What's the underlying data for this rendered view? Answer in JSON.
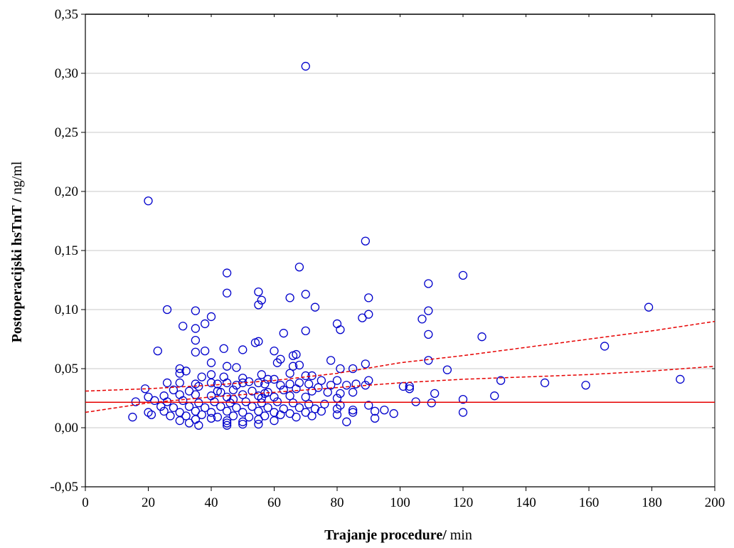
{
  "chart_data": {
    "type": "scatter",
    "xlabel": {
      "bold": "Trajanje procedure/",
      "unit": " min"
    },
    "ylabel": {
      "bold": "Postoperacijski hsTnT /",
      "unit": " ng/ml"
    },
    "xlim": [
      0,
      200
    ],
    "ylim": [
      -0.05,
      0.35
    ],
    "x_ticks": [
      "0",
      "20",
      "40",
      "60",
      "80",
      "100",
      "120",
      "140",
      "160",
      "180",
      "200"
    ],
    "y_ticks": [
      "-0,05",
      "0,00",
      "0,05",
      "0,10",
      "0,15",
      "0,20",
      "0,25",
      "0,30",
      "0,35"
    ],
    "grid": "horizontal",
    "colors": {
      "points": "#0000cc",
      "fit": "#e60000",
      "grid": "#c8c8c8"
    },
    "fit_line": {
      "intercept": 0.0215,
      "slope": 0.0
    },
    "ci_upper": [
      [
        0,
        0.031
      ],
      [
        20,
        0.033
      ],
      [
        40,
        0.036
      ],
      [
        60,
        0.04
      ],
      [
        80,
        0.046
      ],
      [
        100,
        0.055
      ],
      [
        120,
        0.061
      ],
      [
        140,
        0.068
      ],
      [
        160,
        0.075
      ],
      [
        180,
        0.082
      ],
      [
        200,
        0.09
      ]
    ],
    "ci_lower": [
      [
        0,
        0.013
      ],
      [
        20,
        0.021
      ],
      [
        40,
        0.026
      ],
      [
        60,
        0.03
      ],
      [
        80,
        0.034
      ],
      [
        100,
        0.038
      ],
      [
        120,
        0.041
      ],
      [
        140,
        0.043
      ],
      [
        160,
        0.045
      ],
      [
        180,
        0.048
      ],
      [
        200,
        0.052
      ]
    ],
    "points": [
      [
        70,
        0.306
      ],
      [
        20,
        0.192
      ],
      [
        89,
        0.158
      ],
      [
        68,
        0.136
      ],
      [
        45,
        0.131
      ],
      [
        120,
        0.129
      ],
      [
        109,
        0.122
      ],
      [
        45,
        0.114
      ],
      [
        55,
        0.115
      ],
      [
        70,
        0.113
      ],
      [
        65,
        0.11
      ],
      [
        90,
        0.11
      ],
      [
        56,
        0.108
      ],
      [
        55,
        0.104
      ],
      [
        73,
        0.102
      ],
      [
        179,
        0.102
      ],
      [
        26,
        0.1
      ],
      [
        35,
        0.099
      ],
      [
        109,
        0.099
      ],
      [
        40,
        0.094
      ],
      [
        90,
        0.096
      ],
      [
        88,
        0.093
      ],
      [
        107,
        0.092
      ],
      [
        80,
        0.088
      ],
      [
        38,
        0.088
      ],
      [
        31,
        0.086
      ],
      [
        35,
        0.084
      ],
      [
        81,
        0.083
      ],
      [
        70,
        0.082
      ],
      [
        63,
        0.08
      ],
      [
        109,
        0.079
      ],
      [
        126,
        0.077
      ],
      [
        35,
        0.074
      ],
      [
        54,
        0.072
      ],
      [
        55,
        0.073
      ],
      [
        165,
        0.069
      ],
      [
        44,
        0.067
      ],
      [
        23,
        0.065
      ],
      [
        35,
        0.064
      ],
      [
        38,
        0.065
      ],
      [
        50,
        0.066
      ],
      [
        60,
        0.065
      ],
      [
        66,
        0.061
      ],
      [
        67,
        0.062
      ],
      [
        62,
        0.058
      ],
      [
        61,
        0.055
      ],
      [
        78,
        0.057
      ],
      [
        109,
        0.057
      ],
      [
        40,
        0.055
      ],
      [
        45,
        0.052
      ],
      [
        48,
        0.051
      ],
      [
        66,
        0.052
      ],
      [
        68,
        0.053
      ],
      [
        89,
        0.054
      ],
      [
        30,
        0.05
      ],
      [
        32,
        0.048
      ],
      [
        85,
        0.05
      ],
      [
        81,
        0.05
      ],
      [
        115,
        0.049
      ],
      [
        30,
        0.046
      ],
      [
        40,
        0.045
      ],
      [
        44,
        0.043
      ],
      [
        56,
        0.045
      ],
      [
        65,
        0.046
      ],
      [
        70,
        0.044
      ],
      [
        72,
        0.044
      ],
      [
        37,
        0.043
      ],
      [
        50,
        0.042
      ],
      [
        58,
        0.041
      ],
      [
        60,
        0.041
      ],
      [
        75,
        0.04
      ],
      [
        80,
        0.04
      ],
      [
        90,
        0.04
      ],
      [
        132,
        0.04
      ],
      [
        189,
        0.041
      ],
      [
        146,
        0.038
      ],
      [
        159,
        0.036
      ],
      [
        101,
        0.035
      ],
      [
        103,
        0.035
      ],
      [
        103,
        0.033
      ],
      [
        26,
        0.038
      ],
      [
        30,
        0.038
      ],
      [
        35,
        0.037
      ],
      [
        36,
        0.035
      ],
      [
        40,
        0.038
      ],
      [
        42,
        0.037
      ],
      [
        45,
        0.038
      ],
      [
        48,
        0.036
      ],
      [
        50,
        0.038
      ],
      [
        52,
        0.039
      ],
      [
        55,
        0.038
      ],
      [
        57,
        0.037
      ],
      [
        62,
        0.036
      ],
      [
        65,
        0.037
      ],
      [
        68,
        0.038
      ],
      [
        71,
        0.037
      ],
      [
        74,
        0.034
      ],
      [
        78,
        0.036
      ],
      [
        83,
        0.036
      ],
      [
        86,
        0.037
      ],
      [
        89,
        0.036
      ],
      [
        19,
        0.033
      ],
      [
        28,
        0.032
      ],
      [
        33,
        0.031
      ],
      [
        43,
        0.03
      ],
      [
        47,
        0.032
      ],
      [
        53,
        0.031
      ],
      [
        58,
        0.03
      ],
      [
        63,
        0.032
      ],
      [
        67,
        0.033
      ],
      [
        72,
        0.031
      ],
      [
        77,
        0.03
      ],
      [
        81,
        0.029
      ],
      [
        85,
        0.03
      ],
      [
        111,
        0.029
      ],
      [
        130,
        0.027
      ],
      [
        20,
        0.026
      ],
      [
        25,
        0.027
      ],
      [
        30,
        0.028
      ],
      [
        35,
        0.028
      ],
      [
        40,
        0.027
      ],
      [
        45,
        0.026
      ],
      [
        50,
        0.028
      ],
      [
        55,
        0.027
      ],
      [
        60,
        0.026
      ],
      [
        65,
        0.027
      ],
      [
        70,
        0.026
      ],
      [
        80,
        0.025
      ],
      [
        16,
        0.022
      ],
      [
        22,
        0.023
      ],
      [
        26,
        0.022
      ],
      [
        31,
        0.023
      ],
      [
        36,
        0.021
      ],
      [
        41,
        0.022
      ],
      [
        46,
        0.021
      ],
      [
        51,
        0.022
      ],
      [
        56,
        0.021
      ],
      [
        61,
        0.022
      ],
      [
        66,
        0.021
      ],
      [
        71,
        0.02
      ],
      [
        76,
        0.02
      ],
      [
        81,
        0.019
      ],
      [
        90,
        0.019
      ],
      [
        105,
        0.022
      ],
      [
        110,
        0.021
      ],
      [
        120,
        0.024
      ],
      [
        24,
        0.018
      ],
      [
        28,
        0.017
      ],
      [
        33,
        0.018
      ],
      [
        38,
        0.017
      ],
      [
        43,
        0.018
      ],
      [
        48,
        0.017
      ],
      [
        53,
        0.018
      ],
      [
        58,
        0.017
      ],
      [
        63,
        0.016
      ],
      [
        68,
        0.017
      ],
      [
        73,
        0.016
      ],
      [
        80,
        0.016
      ],
      [
        85,
        0.015
      ],
      [
        95,
        0.015
      ],
      [
        20,
        0.013
      ],
      [
        25,
        0.014
      ],
      [
        30,
        0.013
      ],
      [
        35,
        0.014
      ],
      [
        40,
        0.013
      ],
      [
        45,
        0.014
      ],
      [
        50,
        0.013
      ],
      [
        55,
        0.014
      ],
      [
        60,
        0.013
      ],
      [
        65,
        0.012
      ],
      [
        70,
        0.013
      ],
      [
        75,
        0.014
      ],
      [
        85,
        0.013
      ],
      [
        92,
        0.014
      ],
      [
        98,
        0.012
      ],
      [
        120,
        0.013
      ],
      [
        15,
        0.009
      ],
      [
        21,
        0.011
      ],
      [
        27,
        0.01
      ],
      [
        32,
        0.01
      ],
      [
        37,
        0.011
      ],
      [
        42,
        0.009
      ],
      [
        47,
        0.01
      ],
      [
        52,
        0.009
      ],
      [
        57,
        0.01
      ],
      [
        62,
        0.011
      ],
      [
        67,
        0.009
      ],
      [
        72,
        0.01
      ],
      [
        80,
        0.011
      ],
      [
        30,
        0.006
      ],
      [
        35,
        0.007
      ],
      [
        40,
        0.008
      ],
      [
        45,
        0.006
      ],
      [
        50,
        0.005
      ],
      [
        55,
        0.007
      ],
      [
        60,
        0.006
      ],
      [
        92,
        0.008
      ],
      [
        83,
        0.005
      ],
      [
        33,
        0.004
      ],
      [
        45,
        0.004
      ],
      [
        50,
        0.003
      ],
      [
        55,
        0.003
      ],
      [
        36,
        0.002
      ],
      [
        45,
        0.002
      ],
      [
        56,
        0.025
      ],
      [
        47,
        0.024
      ],
      [
        42,
        0.031
      ],
      [
        57,
        0.029
      ]
    ]
  }
}
